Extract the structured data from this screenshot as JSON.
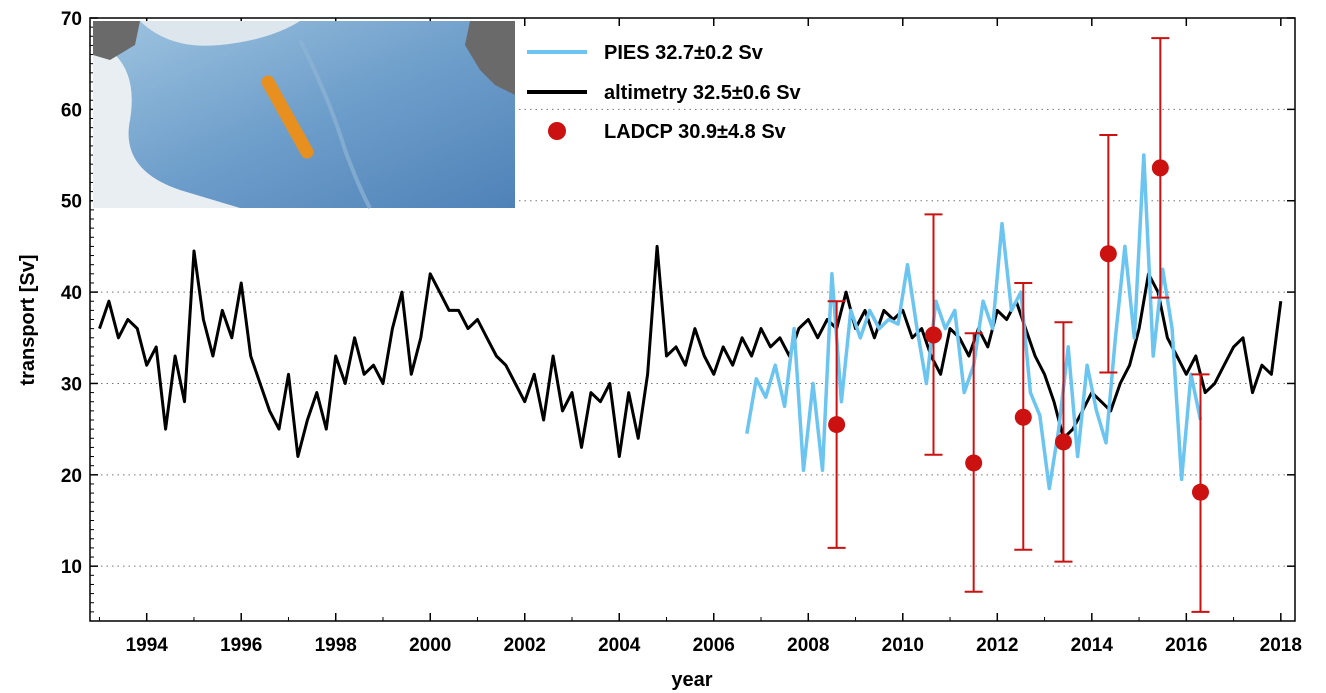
{
  "chart_data": {
    "type": "line",
    "xlabel": "year",
    "ylabel": "transport [Sv]",
    "xlim": [
      1992.8,
      2018.3
    ],
    "ylim": [
      4,
      70
    ],
    "xticks": [
      1994,
      1996,
      1998,
      2000,
      2002,
      2004,
      2006,
      2008,
      2010,
      2012,
      2014,
      2016,
      2018
    ],
    "yticks": [
      10,
      20,
      30,
      40,
      50,
      60,
      70
    ],
    "grid": "dotted",
    "legend_position": "top-center",
    "inset": "map",
    "series": [
      {
        "name": "PIES 32.7±0.2 Sv",
        "color": "#6cc4f0",
        "x": [
          2006.7,
          2006.9,
          2007.1,
          2007.3,
          2007.5,
          2007.7,
          2007.9,
          2008.1,
          2008.3,
          2008.5,
          2008.7,
          2008.9,
          2009.1,
          2009.3,
          2009.5,
          2009.7,
          2009.9,
          2010.1,
          2010.3,
          2010.5,
          2010.7,
          2010.9,
          2011.1,
          2011.3,
          2011.5,
          2011.7,
          2011.9,
          2012.1,
          2012.3,
          2012.5,
          2012.7,
          2012.9,
          2013.1,
          2013.3,
          2013.5,
          2013.7,
          2013.9,
          2014.1,
          2014.3,
          2014.5,
          2014.7,
          2014.9,
          2015.1,
          2015.3,
          2015.5,
          2015.7,
          2015.9,
          2016.1,
          2016.3
        ],
        "y": [
          24.5,
          30.5,
          28.5,
          32,
          27.5,
          36,
          20.5,
          30,
          20.5,
          42,
          28,
          38,
          35,
          38,
          36,
          37,
          36.5,
          43,
          36,
          30,
          39,
          36,
          38,
          29,
          32,
          39,
          36,
          47.5,
          38,
          40,
          29,
          26.5,
          18.5,
          25,
          34,
          22,
          32,
          27,
          23.5,
          35,
          45,
          35,
          55,
          33,
          42.5,
          36,
          19.5,
          31,
          26
        ]
      },
      {
        "name": "altimetry 32.5±0.6 Sv",
        "color": "#000000",
        "x": [
          1993.0,
          1993.2,
          1993.4,
          1993.6,
          1993.8,
          1994.0,
          1994.2,
          1994.4,
          1994.6,
          1994.8,
          1995.0,
          1995.2,
          1995.4,
          1995.6,
          1995.8,
          1996.0,
          1996.2,
          1996.4,
          1996.6,
          1996.8,
          1997.0,
          1997.2,
          1997.4,
          1997.6,
          1997.8,
          1998.0,
          1998.2,
          1998.4,
          1998.6,
          1998.8,
          1999.0,
          1999.2,
          1999.4,
          1999.6,
          1999.8,
          2000.0,
          2000.2,
          2000.4,
          2000.6,
          2000.8,
          2001.0,
          2001.2,
          2001.4,
          2001.6,
          2001.8,
          2002.0,
          2002.2,
          2002.4,
          2002.6,
          2002.8,
          2003.0,
          2003.2,
          2003.4,
          2003.6,
          2003.8,
          2004.0,
          2004.2,
          2004.4,
          2004.6,
          2004.8,
          2005.0,
          2005.2,
          2005.4,
          2005.6,
          2005.8,
          2006.0,
          2006.2,
          2006.4,
          2006.6,
          2006.8,
          2007.0,
          2007.2,
          2007.4,
          2007.6,
          2007.8,
          2008.0,
          2008.2,
          2008.4,
          2008.6,
          2008.8,
          2009.0,
          2009.2,
          2009.4,
          2009.6,
          2009.8,
          2010.0,
          2010.2,
          2010.4,
          2010.6,
          2010.8,
          2011.0,
          2011.2,
          2011.4,
          2011.6,
          2011.8,
          2012.0,
          2012.2,
          2012.4,
          2012.6,
          2012.8,
          2013.0,
          2013.2,
          2013.4,
          2013.6,
          2013.8,
          2014.0,
          2014.2,
          2014.4,
          2014.6,
          2014.8,
          2015.0,
          2015.2,
          2015.4,
          2015.6,
          2015.8,
          2016.0,
          2016.2,
          2016.4,
          2016.6,
          2016.8,
          2017.0,
          2017.2,
          2017.4,
          2017.6,
          2017.8,
          2018.0
        ],
        "y": [
          36,
          39,
          35,
          37,
          36,
          32,
          34,
          25,
          33,
          28,
          44.5,
          37,
          33,
          38,
          35,
          41,
          33,
          30,
          27,
          25,
          31,
          22,
          26,
          29,
          25,
          33,
          30,
          35,
          31,
          32,
          30,
          36,
          40,
          31,
          35,
          42,
          40,
          38,
          38,
          36,
          37,
          35,
          33,
          32,
          30,
          28,
          31,
          26,
          33,
          27,
          29,
          23,
          29,
          28,
          30,
          22,
          29,
          24,
          31,
          45,
          33,
          34,
          32,
          36,
          33,
          31,
          34,
          32,
          35,
          33,
          36,
          34,
          35,
          33,
          36,
          37,
          35,
          37,
          36,
          40,
          36,
          38,
          35,
          38,
          37,
          38,
          35,
          36,
          33,
          31,
          36,
          35,
          33,
          36,
          34,
          38,
          37,
          39,
          36,
          33,
          31,
          28,
          24,
          25,
          27,
          29,
          28,
          27,
          30,
          32,
          36,
          42,
          40,
          35,
          33,
          31,
          33,
          29,
          30,
          32,
          34,
          35,
          29,
          32,
          31,
          39
        ]
      },
      {
        "name": "LADCP 30.9±4.8 Sv",
        "color": "#cc1111",
        "x": [
          2008.6,
          2010.65,
          2011.5,
          2012.55,
          2013.4,
          2014.35,
          2015.45,
          2016.3
        ],
        "y": [
          25.5,
          35.3,
          21.3,
          26.3,
          23.6,
          44.2,
          53.6,
          18.1
        ],
        "err_low": [
          12,
          22.2,
          7.2,
          11.8,
          10.5,
          31.2,
          39.4,
          5
        ],
        "err_high": [
          39,
          48.5,
          35.5,
          41,
          36.7,
          57.2,
          67.8,
          31
        ]
      }
    ]
  }
}
